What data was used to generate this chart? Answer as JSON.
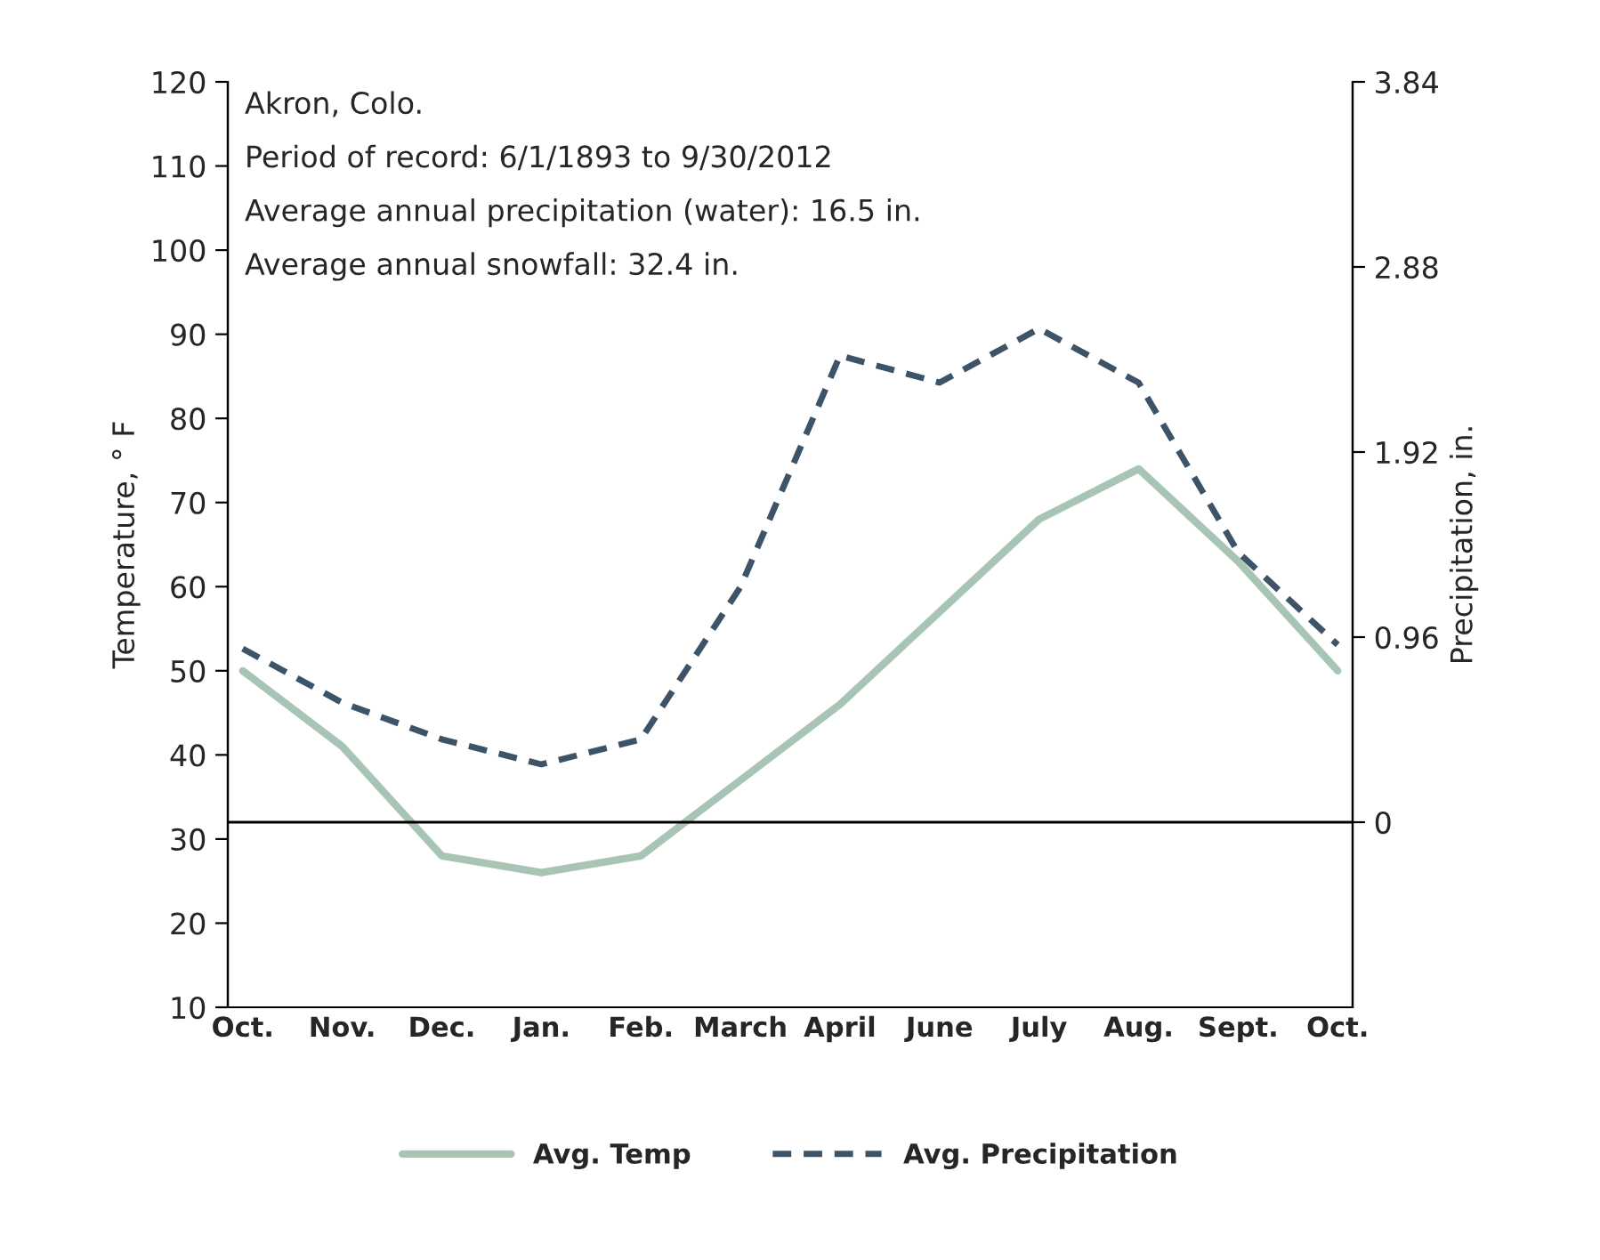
{
  "chart_data": {
    "type": "line",
    "xlabel": null,
    "ylabel": "Temperature, ° F",
    "y2label": "Precipitation, in.",
    "categories": [
      "Oct.",
      "Nov.",
      "Dec.",
      "Jan.",
      "Feb.",
      "March",
      "April",
      "June",
      "July",
      "Aug.",
      "Sept.",
      "Oct."
    ],
    "series": [
      {
        "name": "Avg. Temp",
        "color": "#a7c4b5",
        "line_style": "solid",
        "values": [
          50,
          41,
          28,
          26,
          28,
          37,
          46,
          57,
          68,
          74,
          63,
          50
        ]
      },
      {
        "name": "Avg. Precipitation",
        "color": "#3d5468",
        "line_style": "dashed",
        "axis": "y2",
        "values": [
          0.9,
          0.62,
          0.43,
          0.3,
          0.43,
          1.22,
          2.42,
          2.28,
          2.56,
          2.28,
          1.4,
          0.92
        ]
      }
    ],
    "ylim": [
      10,
      120
    ],
    "yticks": [
      10,
      20,
      30,
      40,
      50,
      60,
      70,
      80,
      90,
      100,
      110,
      120
    ],
    "y2lim": [
      -0.96,
      3.84
    ],
    "y2ticks": [
      0,
      0.96,
      1.92,
      2.88,
      3.84
    ],
    "ref_lines": [
      {
        "axis": "y2",
        "value": 0,
        "color": "#000000"
      }
    ],
    "annotations": [
      "Akron, Colo.",
      "Period of record: 6/1/1893 to 9/30/2012",
      "Average annual precipitation (water): 16.5 in.",
      "Average annual snowfall: 32.4 in."
    ],
    "grid": false,
    "legend": "bottom",
    "marker": "none"
  }
}
